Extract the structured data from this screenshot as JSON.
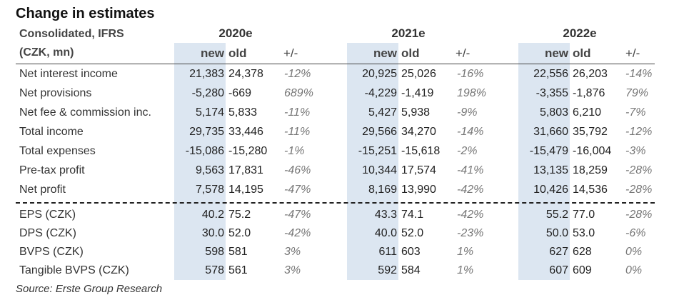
{
  "title": "Change in estimates",
  "header": {
    "label_line1": "Consolidated, IFRS",
    "label_line2": "(CZK, mn)",
    "years": [
      "2020e",
      "2021e",
      "2022e"
    ],
    "col_new": "new",
    "col_old": "old",
    "col_change": "+/-"
  },
  "rows": [
    {
      "label": "Net interest income",
      "values": [
        [
          "21,383",
          "24,378",
          "-12%"
        ],
        [
          "20,925",
          "25,026",
          "-16%"
        ],
        [
          "22,556",
          "26,203",
          "-14%"
        ]
      ]
    },
    {
      "label": "Net provisions",
      "values": [
        [
          "-5,280",
          "-669",
          "689%"
        ],
        [
          "-4,229",
          "-1,419",
          "198%"
        ],
        [
          "-3,355",
          "-1,876",
          "79%"
        ]
      ]
    },
    {
      "label": "Net fee & commission inc.",
      "values": [
        [
          "5,174",
          "5,833",
          "-11%"
        ],
        [
          "5,427",
          "5,938",
          "-9%"
        ],
        [
          "5,803",
          "6,210",
          "-7%"
        ]
      ]
    },
    {
      "label": "Total income",
      "values": [
        [
          "29,735",
          "33,446",
          "-11%"
        ],
        [
          "29,566",
          "34,270",
          "-14%"
        ],
        [
          "31,660",
          "35,792",
          "-12%"
        ]
      ]
    },
    {
      "label": "Total expenses",
      "values": [
        [
          "-15,086",
          "-15,280",
          "-1%"
        ],
        [
          "-15,251",
          "-15,618",
          "-2%"
        ],
        [
          "-15,479",
          "-16,004",
          "-3%"
        ]
      ]
    },
    {
      "label": "Pre-tax profit",
      "values": [
        [
          "9,563",
          "17,831",
          "-46%"
        ],
        [
          "10,344",
          "17,574",
          "-41%"
        ],
        [
          "13,135",
          "18,259",
          "-28%"
        ]
      ]
    },
    {
      "label": "Net profit",
      "values": [
        [
          "7,578",
          "14,195",
          "-47%"
        ],
        [
          "8,169",
          "13,990",
          "-42%"
        ],
        [
          "10,426",
          "14,536",
          "-28%"
        ]
      ]
    },
    {
      "label": "EPS (CZK)",
      "values": [
        [
          "40.2",
          "75.2",
          "-47%"
        ],
        [
          "43.3",
          "74.1",
          "-42%"
        ],
        [
          "55.2",
          "77.0",
          "-28%"
        ]
      ]
    },
    {
      "label": "DPS (CZK)",
      "values": [
        [
          "30.0",
          "52.0",
          "-42%"
        ],
        [
          "40.0",
          "52.0",
          "-23%"
        ],
        [
          "50.0",
          "53.0",
          "-6%"
        ]
      ]
    },
    {
      "label": "BVPS (CZK)",
      "values": [
        [
          "598",
          "581",
          "3%"
        ],
        [
          "611",
          "603",
          "1%"
        ],
        [
          "627",
          "628",
          "0%"
        ]
      ]
    },
    {
      "label": "Tangible BVPS (CZK)",
      "values": [
        [
          "578",
          "561",
          "3%"
        ],
        [
          "592",
          "584",
          "1%"
        ],
        [
          "607",
          "609",
          "0%"
        ]
      ]
    }
  ],
  "source": "Source: Erste Group Research"
}
